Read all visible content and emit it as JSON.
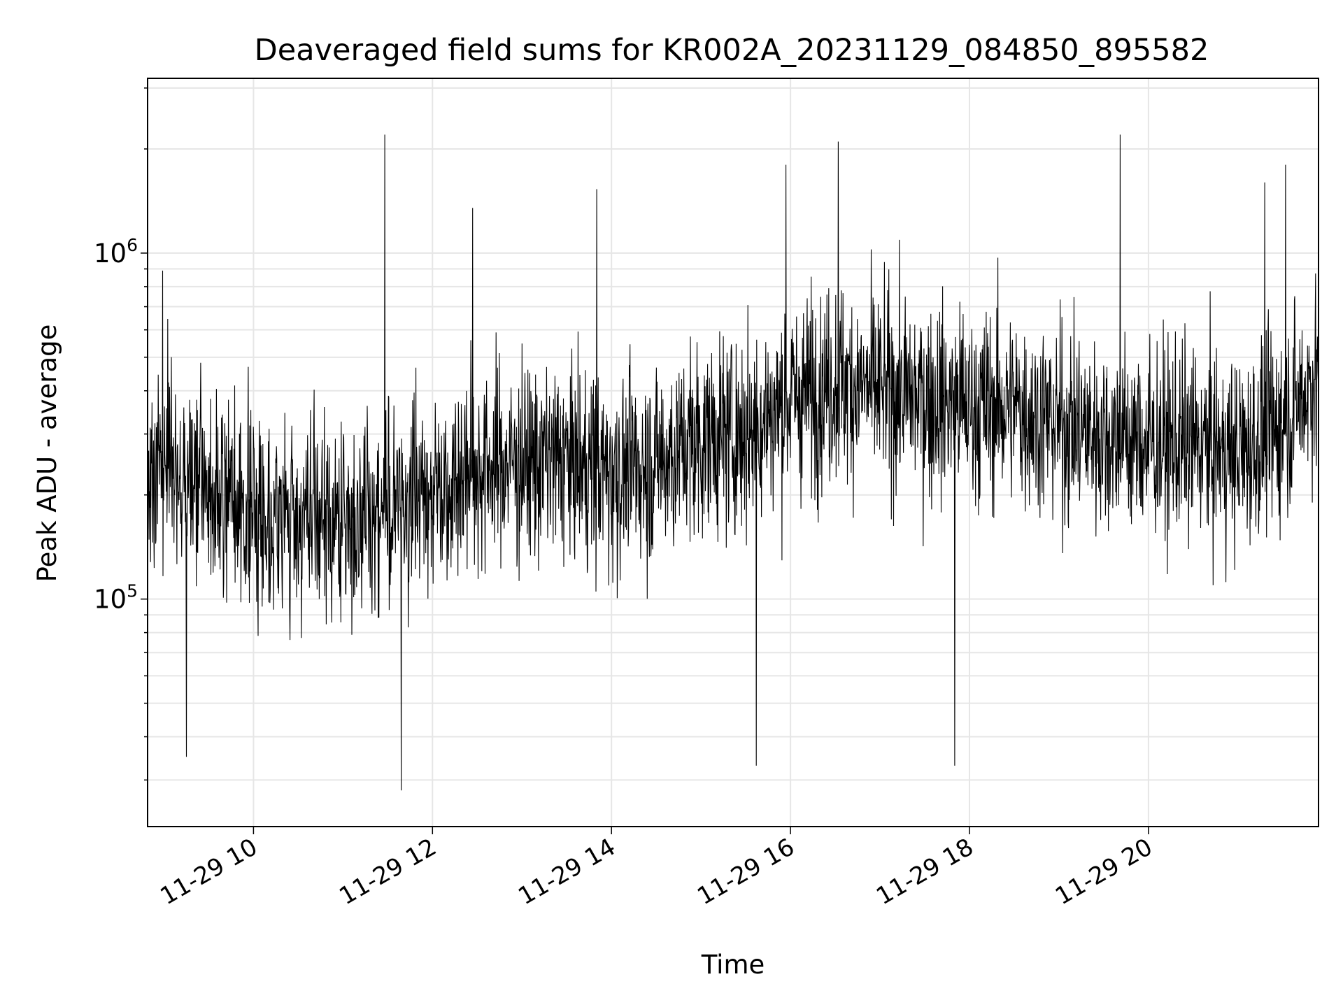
{
  "chart_data": {
    "type": "line",
    "title": "Deaveraged field sums for KR002A_20231129_084850_895582",
    "xlabel": "Time",
    "ylabel": "Peak ADU - average",
    "yscale": "log",
    "grid": true,
    "line_color": "#000000",
    "grid_color": "#e6e6e6",
    "xlim": [
      "2023-11-29 08:49",
      "2023-11-29 21:54"
    ],
    "ylim": [
      22000,
      3200000
    ],
    "xticks": [
      {
        "label": "11-29 10",
        "value": "2023-11-29 10:00"
      },
      {
        "label": "11-29 12",
        "value": "2023-11-29 12:00"
      },
      {
        "label": "11-29 14",
        "value": "2023-11-29 14:00"
      },
      {
        "label": "11-29 16",
        "value": "2023-11-29 16:00"
      },
      {
        "label": "11-29 18",
        "value": "2023-11-29 18:00"
      },
      {
        "label": "11-29 20",
        "value": "2023-11-29 20:00"
      }
    ],
    "yticks": [
      {
        "base": "10",
        "exp": "5",
        "value": 100000
      },
      {
        "base": "10",
        "exp": "6",
        "value": 1000000
      }
    ],
    "series": [
      {
        "x": [
          "2023-11-29 08:49",
          "2023-11-29 09:00",
          "2023-11-29 09:30",
          "2023-11-29 10:00",
          "2023-11-29 10:30",
          "2023-11-29 11:00",
          "2023-11-29 11:30",
          "2023-11-29 12:00",
          "2023-11-29 12:30",
          "2023-11-29 13:00",
          "2023-11-29 13:30",
          "2023-11-29 14:00",
          "2023-11-29 14:30",
          "2023-11-29 15:00",
          "2023-11-29 15:30",
          "2023-11-29 16:00",
          "2023-11-29 16:30",
          "2023-11-29 17:00",
          "2023-11-29 17:30",
          "2023-11-29 18:00",
          "2023-11-29 18:30",
          "2023-11-29 19:00",
          "2023-11-29 19:30",
          "2023-11-29 20:00",
          "2023-11-29 20:30",
          "2023-11-29 21:00",
          "2023-11-29 21:30",
          "2023-11-29 21:54"
        ],
        "typical": [
          230000,
          260000,
          200000,
          180000,
          170000,
          165000,
          180000,
          210000,
          240000,
          250000,
          250000,
          230000,
          250000,
          290000,
          300000,
          380000,
          420000,
          400000,
          380000,
          360000,
          360000,
          320000,
          300000,
          280000,
          280000,
          260000,
          320000,
          450000
        ],
        "spikes": [
          {
            "x": "2023-11-29 08:59",
            "y": 890000
          },
          {
            "x": "2023-11-29 11:28",
            "y": 2200000
          },
          {
            "x": "2023-11-29 11:39",
            "y": 28000
          },
          {
            "x": "2023-11-29 09:15",
            "y": 35000
          },
          {
            "x": "2023-11-29 12:27",
            "y": 1350000
          },
          {
            "x": "2023-11-29 13:50",
            "y": 1530000
          },
          {
            "x": "2023-11-29 15:57",
            "y": 1800000
          },
          {
            "x": "2023-11-29 16:32",
            "y": 2100000
          },
          {
            "x": "2023-11-29 15:37",
            "y": 33000
          },
          {
            "x": "2023-11-29 17:50",
            "y": 33000
          },
          {
            "x": "2023-11-29 19:41",
            "y": 2200000
          },
          {
            "x": "2023-11-29 21:18",
            "y": 1600000
          },
          {
            "x": "2023-11-29 21:32",
            "y": 1800000
          }
        ]
      }
    ]
  }
}
